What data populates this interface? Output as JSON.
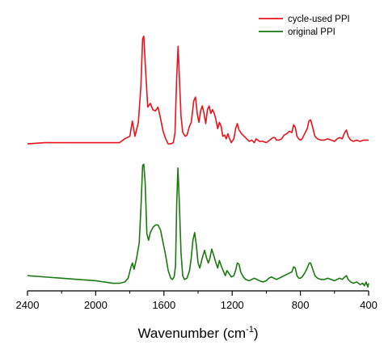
{
  "chart_data": {
    "type": "line",
    "title": "",
    "xlabel": "Wavenumber (cm",
    "xlabel_sup": "-1",
    "xlabel_close": ")",
    "ylabel": "",
    "xlim": [
      2400,
      400
    ],
    "ylim": [
      0,
      2.2
    ],
    "x_reversed": true,
    "x_ticks": [
      "2400",
      "2000",
      "1600",
      "1200",
      "800",
      "400"
    ],
    "y_axis_visible": false,
    "grid": false,
    "legend_position": "top-right",
    "series": [
      {
        "name": "cycle-used PPI",
        "color": "#e8141b",
        "points": [
          [
            2400,
            1.16
          ],
          [
            2300,
            1.17
          ],
          [
            2200,
            1.17
          ],
          [
            2100,
            1.17
          ],
          [
            2000,
            1.17
          ],
          [
            1900,
            1.17
          ],
          [
            1860,
            1.17
          ],
          [
            1830,
            1.2
          ],
          [
            1800,
            1.22
          ],
          [
            1785,
            1.34
          ],
          [
            1770,
            1.22
          ],
          [
            1750,
            1.33
          ],
          [
            1735,
            1.62
          ],
          [
            1725,
            1.99
          ],
          [
            1718,
            2.01
          ],
          [
            1710,
            1.8
          ],
          [
            1695,
            1.45
          ],
          [
            1680,
            1.48
          ],
          [
            1665,
            1.43
          ],
          [
            1650,
            1.42
          ],
          [
            1635,
            1.45
          ],
          [
            1620,
            1.36
          ],
          [
            1605,
            1.26
          ],
          [
            1590,
            1.2
          ],
          [
            1575,
            1.16
          ],
          [
            1560,
            1.16
          ],
          [
            1545,
            1.17
          ],
          [
            1535,
            1.25
          ],
          [
            1525,
            1.7
          ],
          [
            1517,
            1.93
          ],
          [
            1510,
            1.7
          ],
          [
            1500,
            1.38
          ],
          [
            1490,
            1.25
          ],
          [
            1475,
            1.22
          ],
          [
            1465,
            1.23
          ],
          [
            1450,
            1.3
          ],
          [
            1440,
            1.33
          ],
          [
            1425,
            1.5
          ],
          [
            1415,
            1.53
          ],
          [
            1405,
            1.4
          ],
          [
            1395,
            1.33
          ],
          [
            1385,
            1.42
          ],
          [
            1375,
            1.46
          ],
          [
            1365,
            1.4
          ],
          [
            1355,
            1.32
          ],
          [
            1345,
            1.43
          ],
          [
            1335,
            1.46
          ],
          [
            1325,
            1.4
          ],
          [
            1315,
            1.43
          ],
          [
            1305,
            1.4
          ],
          [
            1295,
            1.35
          ],
          [
            1285,
            1.28
          ],
          [
            1275,
            1.33
          ],
          [
            1265,
            1.3
          ],
          [
            1255,
            1.22
          ],
          [
            1245,
            1.23
          ],
          [
            1235,
            1.2
          ],
          [
            1225,
            1.24
          ],
          [
            1215,
            1.2
          ],
          [
            1205,
            1.17
          ],
          [
            1190,
            1.2
          ],
          [
            1180,
            1.28
          ],
          [
            1170,
            1.32
          ],
          [
            1160,
            1.27
          ],
          [
            1145,
            1.24
          ],
          [
            1130,
            1.22
          ],
          [
            1115,
            1.2
          ],
          [
            1100,
            1.18
          ],
          [
            1085,
            1.19
          ],
          [
            1070,
            1.17
          ],
          [
            1060,
            1.2
          ],
          [
            1050,
            1.19
          ],
          [
            1040,
            1.18
          ],
          [
            1020,
            1.18
          ],
          [
            1000,
            1.17
          ],
          [
            980,
            1.19
          ],
          [
            960,
            1.21
          ],
          [
            950,
            1.21
          ],
          [
            940,
            1.19
          ],
          [
            925,
            1.19
          ],
          [
            910,
            1.2
          ],
          [
            895,
            1.23
          ],
          [
            880,
            1.24
          ],
          [
            865,
            1.26
          ],
          [
            850,
            1.25
          ],
          [
            840,
            1.31
          ],
          [
            830,
            1.29
          ],
          [
            820,
            1.22
          ],
          [
            810,
            1.2
          ],
          [
            800,
            1.19
          ],
          [
            790,
            1.2
          ],
          [
            775,
            1.24
          ],
          [
            760,
            1.28
          ],
          [
            750,
            1.34
          ],
          [
            740,
            1.35
          ],
          [
            730,
            1.3
          ],
          [
            715,
            1.22
          ],
          [
            700,
            1.2
          ],
          [
            680,
            1.19
          ],
          [
            660,
            1.19
          ],
          [
            640,
            1.2
          ],
          [
            620,
            1.19
          ],
          [
            600,
            1.18
          ],
          [
            585,
            1.2
          ],
          [
            570,
            1.21
          ],
          [
            555,
            1.2
          ],
          [
            540,
            1.25
          ],
          [
            530,
            1.27
          ],
          [
            520,
            1.22
          ],
          [
            505,
            1.19
          ],
          [
            490,
            1.18
          ],
          [
            470,
            1.19
          ],
          [
            450,
            1.18
          ],
          [
            430,
            1.19
          ],
          [
            400,
            1.19
          ]
        ]
      },
      {
        "name": "original PPI",
        "color": "#1a7a10",
        "points": [
          [
            2400,
            0.12
          ],
          [
            2300,
            0.11
          ],
          [
            2200,
            0.1
          ],
          [
            2100,
            0.09
          ],
          [
            2000,
            0.08
          ],
          [
            1900,
            0.06
          ],
          [
            1860,
            0.06
          ],
          [
            1830,
            0.07
          ],
          [
            1810,
            0.1
          ],
          [
            1795,
            0.18
          ],
          [
            1785,
            0.22
          ],
          [
            1775,
            0.17
          ],
          [
            1760,
            0.26
          ],
          [
            1745,
            0.38
          ],
          [
            1735,
            0.65
          ],
          [
            1725,
            0.99
          ],
          [
            1718,
            1.0
          ],
          [
            1710,
            0.85
          ],
          [
            1700,
            0.45
          ],
          [
            1690,
            0.4
          ],
          [
            1680,
            0.46
          ],
          [
            1665,
            0.5
          ],
          [
            1650,
            0.52
          ],
          [
            1635,
            0.52
          ],
          [
            1620,
            0.48
          ],
          [
            1605,
            0.38
          ],
          [
            1590,
            0.28
          ],
          [
            1575,
            0.16
          ],
          [
            1560,
            0.1
          ],
          [
            1550,
            0.09
          ],
          [
            1540,
            0.11
          ],
          [
            1532,
            0.2
          ],
          [
            1525,
            0.7
          ],
          [
            1518,
            0.97
          ],
          [
            1510,
            0.7
          ],
          [
            1500,
            0.3
          ],
          [
            1490,
            0.12
          ],
          [
            1480,
            0.09
          ],
          [
            1465,
            0.1
          ],
          [
            1450,
            0.16
          ],
          [
            1440,
            0.26
          ],
          [
            1430,
            0.4
          ],
          [
            1420,
            0.46
          ],
          [
            1410,
            0.36
          ],
          [
            1400,
            0.22
          ],
          [
            1390,
            0.18
          ],
          [
            1375,
            0.26
          ],
          [
            1362,
            0.32
          ],
          [
            1350,
            0.26
          ],
          [
            1340,
            0.22
          ],
          [
            1330,
            0.26
          ],
          [
            1320,
            0.33
          ],
          [
            1308,
            0.28
          ],
          [
            1295,
            0.22
          ],
          [
            1285,
            0.18
          ],
          [
            1275,
            0.24
          ],
          [
            1265,
            0.2
          ],
          [
            1250,
            0.15
          ],
          [
            1240,
            0.12
          ],
          [
            1230,
            0.16
          ],
          [
            1220,
            0.14
          ],
          [
            1205,
            0.11
          ],
          [
            1190,
            0.12
          ],
          [
            1180,
            0.16
          ],
          [
            1170,
            0.22
          ],
          [
            1160,
            0.21
          ],
          [
            1150,
            0.15
          ],
          [
            1135,
            0.11
          ],
          [
            1120,
            0.09
          ],
          [
            1100,
            0.08
          ],
          [
            1085,
            0.09
          ],
          [
            1070,
            0.1
          ],
          [
            1055,
            0.09
          ],
          [
            1040,
            0.08
          ],
          [
            1020,
            0.07
          ],
          [
            1000,
            0.08
          ],
          [
            985,
            0.1
          ],
          [
            970,
            0.11
          ],
          [
            955,
            0.1
          ],
          [
            940,
            0.09
          ],
          [
            925,
            0.1
          ],
          [
            910,
            0.11
          ],
          [
            895,
            0.12
          ],
          [
            880,
            0.13
          ],
          [
            865,
            0.14
          ],
          [
            850,
            0.15
          ],
          [
            840,
            0.19
          ],
          [
            830,
            0.18
          ],
          [
            820,
            0.12
          ],
          [
            810,
            0.1
          ],
          [
            800,
            0.1
          ],
          [
            790,
            0.11
          ],
          [
            775,
            0.14
          ],
          [
            760,
            0.18
          ],
          [
            748,
            0.22
          ],
          [
            740,
            0.22
          ],
          [
            730,
            0.18
          ],
          [
            715,
            0.12
          ],
          [
            700,
            0.1
          ],
          [
            680,
            0.09
          ],
          [
            660,
            0.09
          ],
          [
            640,
            0.1
          ],
          [
            620,
            0.09
          ],
          [
            600,
            0.08
          ],
          [
            585,
            0.09
          ],
          [
            570,
            0.1
          ],
          [
            555,
            0.09
          ],
          [
            540,
            0.11
          ],
          [
            530,
            0.12
          ],
          [
            520,
            0.09
          ],
          [
            505,
            0.07
          ],
          [
            490,
            0.06
          ],
          [
            470,
            0.07
          ],
          [
            450,
            0.05
          ],
          [
            435,
            0.06
          ],
          [
            425,
            0.04
          ],
          [
            415,
            0.07
          ],
          [
            405,
            0.03
          ],
          [
            400,
            0.06
          ]
        ]
      }
    ]
  }
}
